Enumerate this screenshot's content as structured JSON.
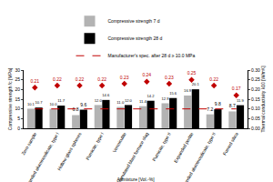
{
  "chart_data": {
    "type": "bar",
    "x_title": "Admixture [Vol.-%]",
    "y_title": "Compressive strength fc [MPa]",
    "y2_title": "Thermal conductivity λ10 [W/mK]",
    "categories": [
      "Zero sample",
      "Expanded aluminosilicate, type I",
      "Hollow glass spheres",
      "Pumicite, type I",
      "Vermiculite",
      "Granulated blast furnace slag",
      "Pumicite, type II",
      "Expanded perlite",
      "Expanded aluminosilicate, type II",
      "Fumed silica"
    ],
    "series": [
      {
        "name": "Compressive strength 7 d",
        "type": "bar",
        "color": "#b3b3b3",
        "values": [
          10.1,
          10.0,
          6.8,
          12.0,
          11.0,
          11.4,
          12.9,
          16.9,
          7.2,
          8.7
        ],
        "value_labels": [
          "10.1",
          "10.0",
          "6.8",
          "12.0",
          "11.0",
          "11.4",
          "12.9",
          "16.9",
          "7.2",
          "8.7"
        ]
      },
      {
        "name": "Compressive strength 28 d",
        "type": "bar",
        "color": "#000000",
        "values": [
          10.7,
          11.7,
          9.6,
          14.6,
          12.0,
          14.2,
          15.6,
          20.1,
          9.8,
          11.9
        ],
        "value_labels": [
          "10.7",
          "11.7",
          "9.6",
          "14.6",
          "12.0",
          "14.2",
          "15.6",
          "20.1",
          "9.8",
          "11.9"
        ]
      },
      {
        "type": "scatter",
        "marker": "diamond",
        "axis": "y2",
        "color": "#c00000",
        "values": [
          0.21,
          0.22,
          0.22,
          0.22,
          0.23,
          0.24,
          0.23,
          0.25,
          0.22,
          0.17
        ],
        "value_labels": [
          "0.21",
          "0.22",
          "0.22",
          "0.22",
          "0.23",
          "0.24",
          "0.23",
          "0.25",
          "0.22",
          "0.17"
        ]
      },
      {
        "name": "Manufacturer's spec. after 28 d ≥ 10.0 MPa",
        "type": "line",
        "line_style": "dash",
        "color": "#c00000",
        "values": [
          10,
          10,
          10,
          10,
          10,
          10,
          10,
          10,
          10,
          10
        ]
      }
    ],
    "ylim": [
      0,
      30
    ],
    "yticks": [
      0,
      5,
      10,
      15,
      20,
      25,
      30
    ],
    "y2lim": [
      0,
      0.3
    ],
    "y2ticks": [
      {
        "value": 0,
        "label": "0.00"
      },
      {
        "value": 0.05,
        "label": "0.05"
      },
      {
        "value": 0.1,
        "label": "0.10"
      },
      {
        "value": 0.15,
        "label": "0.15"
      },
      {
        "value": 0.2,
        "label": "0.20"
      },
      {
        "value": 0.25,
        "label": "0.25"
      },
      {
        "value": 0.3,
        "label": "0.30"
      }
    ],
    "grid": false,
    "legend": "top",
    "data_labels": true
  }
}
